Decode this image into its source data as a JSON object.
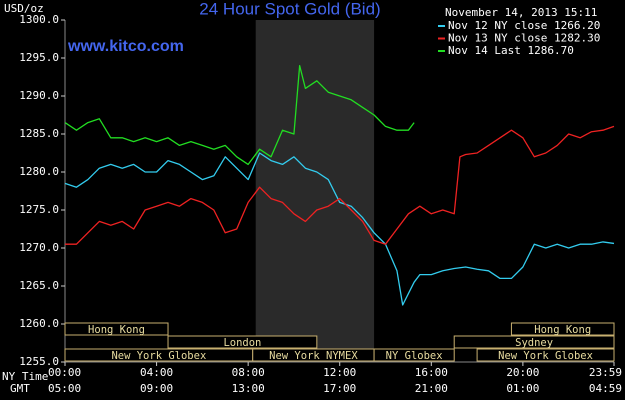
{
  "chart_data": {
    "type": "line",
    "title": "24 Hour Spot Gold (Bid)",
    "y_label": "USD/oz",
    "timestamp": "November 14, 2013 15:11",
    "watermark": "www.kitco.com",
    "x_label": "NY Time",
    "x2_label": "GMT",
    "xlim": [
      0,
      23.98
    ],
    "xticks": [
      {
        "value": 0,
        "label": "00:00"
      },
      {
        "value": 4,
        "label": "04:00"
      },
      {
        "value": 8,
        "label": "08:00"
      },
      {
        "value": 12,
        "label": "12:00"
      },
      {
        "value": 16,
        "label": "16:00"
      },
      {
        "value": 20,
        "label": "20:00"
      },
      {
        "value": 23.98,
        "label": "23:59"
      }
    ],
    "gmt_labels": [
      "05:00",
      "09:00",
      "13:00",
      "17:00",
      "21:00",
      "01:00",
      "04:59"
    ],
    "ylim": [
      1255,
      1300
    ],
    "yticks": [
      {
        "value": 1255,
        "label": "1255.0"
      },
      {
        "value": 1260,
        "label": "1260.0"
      },
      {
        "value": 1265,
        "label": "1265.0"
      },
      {
        "value": 1270,
        "label": "1270.0"
      },
      {
        "value": 1275,
        "label": "1275.0"
      },
      {
        "value": 1280,
        "label": "1280.0"
      },
      {
        "value": 1285,
        "label": "1285.0"
      },
      {
        "value": 1290,
        "label": "1290.0"
      },
      {
        "value": 1295,
        "label": "1295.0"
      },
      {
        "value": 1300,
        "label": "1300.0"
      }
    ],
    "grid": false,
    "highlight": [
      8.33,
      13.5
    ],
    "sessions": [
      [
        {
          "label": "Hong Kong",
          "start": 0,
          "end": 4.5
        },
        {
          "label": "Hong Kong",
          "start": 19.5,
          "end": 23.98
        }
      ],
      [
        {
          "label": "London",
          "start": 4.5,
          "end": 11
        },
        {
          "label": "Sydney",
          "start": 17,
          "end": 23.98
        }
      ],
      [
        {
          "label": "New York Globex",
          "start": 0,
          "end": 8.2
        },
        {
          "label": "New York NYMEX",
          "start": 8.2,
          "end": 13.5
        },
        {
          "label": "NY Globex",
          "start": 13.5,
          "end": 17
        },
        {
          "label": "New York Globex",
          "start": 18,
          "end": 23.98
        }
      ]
    ],
    "series": [
      {
        "name": "Nov 12 NY close 1266.20",
        "color": "#33ccee",
        "x": [
          0,
          0.5,
          1,
          1.5,
          2,
          2.5,
          3,
          3.5,
          4,
          4.5,
          5,
          5.5,
          6,
          6.5,
          7,
          7.5,
          8,
          8.5,
          9,
          9.5,
          10,
          10.5,
          11,
          11.5,
          12,
          12.5,
          13,
          13.5,
          14,
          14.5,
          14.75,
          15,
          15.25,
          15.5,
          16,
          16.5,
          17,
          17.5,
          18,
          18.5,
          19,
          19.5,
          20,
          20.5,
          21,
          21.5,
          22,
          22.5,
          23,
          23.5,
          23.98
        ],
        "values": [
          1278.5,
          1278,
          1279,
          1280.5,
          1281,
          1280.5,
          1281,
          1280,
          1280,
          1281.5,
          1281,
          1280,
          1279,
          1279.5,
          1282,
          1280.5,
          1279,
          1282.5,
          1281.5,
          1281,
          1282,
          1280.5,
          1280,
          1279,
          1276,
          1275.5,
          1274,
          1272,
          1270.5,
          1267,
          1262.5,
          1264,
          1265.5,
          1266.5,
          1266.5,
          1267,
          1267.3,
          1267.5,
          1267.2,
          1267,
          1266,
          1266,
          1267.5,
          1270.5,
          1270,
          1270.5,
          1270,
          1270.5,
          1270.5,
          1270.8,
          1270.6
        ]
      },
      {
        "name": "Nov 13 NY close 1282.30",
        "color": "#ee2222",
        "x": [
          0,
          0.5,
          1,
          1.5,
          2,
          2.5,
          3,
          3.5,
          4,
          4.5,
          5,
          5.5,
          6,
          6.5,
          7,
          7.5,
          8,
          8.5,
          9,
          9.5,
          10,
          10.5,
          11,
          11.5,
          12,
          12.5,
          13,
          13.5,
          14,
          14.5,
          15,
          15.5,
          16,
          16.5,
          17,
          17.25,
          17.5,
          18,
          18.5,
          19,
          19.5,
          20,
          20.5,
          21,
          21.5,
          22,
          22.5,
          23,
          23.5,
          23.98
        ],
        "values": [
          1270.5,
          1270.5,
          1272,
          1273.5,
          1273,
          1273.5,
          1272.5,
          1275,
          1275.5,
          1276,
          1275.5,
          1276.5,
          1276,
          1275,
          1272,
          1272.5,
          1276,
          1278,
          1276.5,
          1276,
          1274.5,
          1273.5,
          1275,
          1275.5,
          1276.5,
          1275,
          1273.5,
          1271,
          1270.5,
          1272.5,
          1274.5,
          1275.5,
          1274.5,
          1275,
          1274.5,
          1282,
          1282.3,
          1282.5,
          1283.5,
          1284.5,
          1285.5,
          1284.5,
          1282,
          1282.5,
          1283.5,
          1285,
          1284.5,
          1285.3,
          1285.5,
          1286
        ]
      },
      {
        "name": "Nov 14 Last 1286.70",
        "color": "#22dd22",
        "x": [
          0,
          0.5,
          1,
          1.5,
          2,
          2.5,
          3,
          3.5,
          4,
          4.5,
          5,
          5.5,
          6,
          6.5,
          7,
          7.5,
          8,
          8.5,
          9,
          9.5,
          10,
          10.25,
          10.5,
          11,
          11.5,
          12,
          12.5,
          13,
          13.5,
          14,
          14.5,
          15,
          15.25
        ],
        "values": [
          1286.5,
          1285.5,
          1286.5,
          1287,
          1284.5,
          1284.5,
          1284,
          1284.5,
          1284,
          1284.5,
          1283.5,
          1284,
          1283.5,
          1283,
          1283.5,
          1282,
          1281,
          1283,
          1282,
          1285.5,
          1285,
          1294,
          1291,
          1292,
          1290.5,
          1290,
          1289.5,
          1288.5,
          1287.5,
          1286,
          1285.5,
          1285.5,
          1286.5
        ]
      }
    ]
  }
}
